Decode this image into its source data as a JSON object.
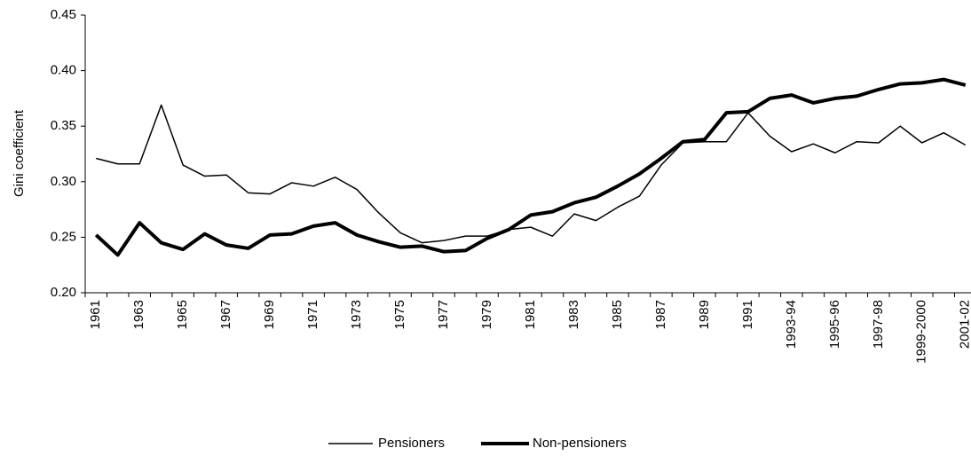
{
  "chart_data": {
    "type": "line",
    "y_label": "Gini coefficient",
    "categories": [
      "1961",
      null,
      "1963",
      null,
      "1965",
      null,
      "1967",
      null,
      "1969",
      null,
      "1971",
      null,
      "1973",
      null,
      "1975",
      null,
      "1977",
      null,
      "1979",
      null,
      "1981",
      null,
      "1983",
      null,
      "1985",
      null,
      "1987",
      null,
      "1989",
      null,
      "1991",
      null,
      "1993-94",
      null,
      "1995-96",
      null,
      "1997-98",
      null,
      "1999-2000",
      null,
      "2001-02"
    ],
    "series": [
      {
        "name": "Pensioners",
        "color": "#000000",
        "values": [
          0.321,
          0.316,
          0.316,
          0.369,
          0.315,
          0.305,
          0.306,
          0.29,
          0.289,
          0.299,
          0.296,
          0.304,
          0.293,
          0.272,
          0.254,
          0.245,
          0.247,
          0.251,
          0.251,
          0.257,
          0.259,
          0.251,
          0.271,
          0.265,
          0.277,
          0.287,
          0.315,
          0.335,
          0.336,
          0.336,
          0.362,
          0.341,
          0.327,
          0.334,
          0.326,
          0.336,
          0.335,
          0.35,
          0.335,
          0.344,
          0.333
        ]
      },
      {
        "name": "Non-pensioners",
        "color": "#000000",
        "values": [
          0.252,
          0.234,
          0.263,
          0.245,
          0.239,
          0.253,
          0.243,
          0.24,
          0.252,
          0.253,
          0.26,
          0.263,
          0.252,
          0.246,
          0.241,
          0.242,
          0.237,
          0.238,
          0.249,
          0.257,
          0.27,
          0.273,
          0.281,
          0.286,
          0.296,
          0.307,
          0.321,
          0.336,
          0.338,
          0.362,
          0.363,
          0.375,
          0.378,
          0.371,
          0.375,
          0.377,
          0.383,
          0.388,
          0.389,
          0.392,
          0.387
        ]
      }
    ],
    "ylim": [
      0.2,
      0.45
    ],
    "yticks": [
      {
        "value": 0.2,
        "label": "0.20"
      },
      0.25,
      {
        "value": 0.3,
        "label": "0.30"
      },
      0.35,
      {
        "value": 0.4,
        "label": "0.40"
      },
      0.45
    ],
    "grid": false,
    "legend": "bottom"
  }
}
